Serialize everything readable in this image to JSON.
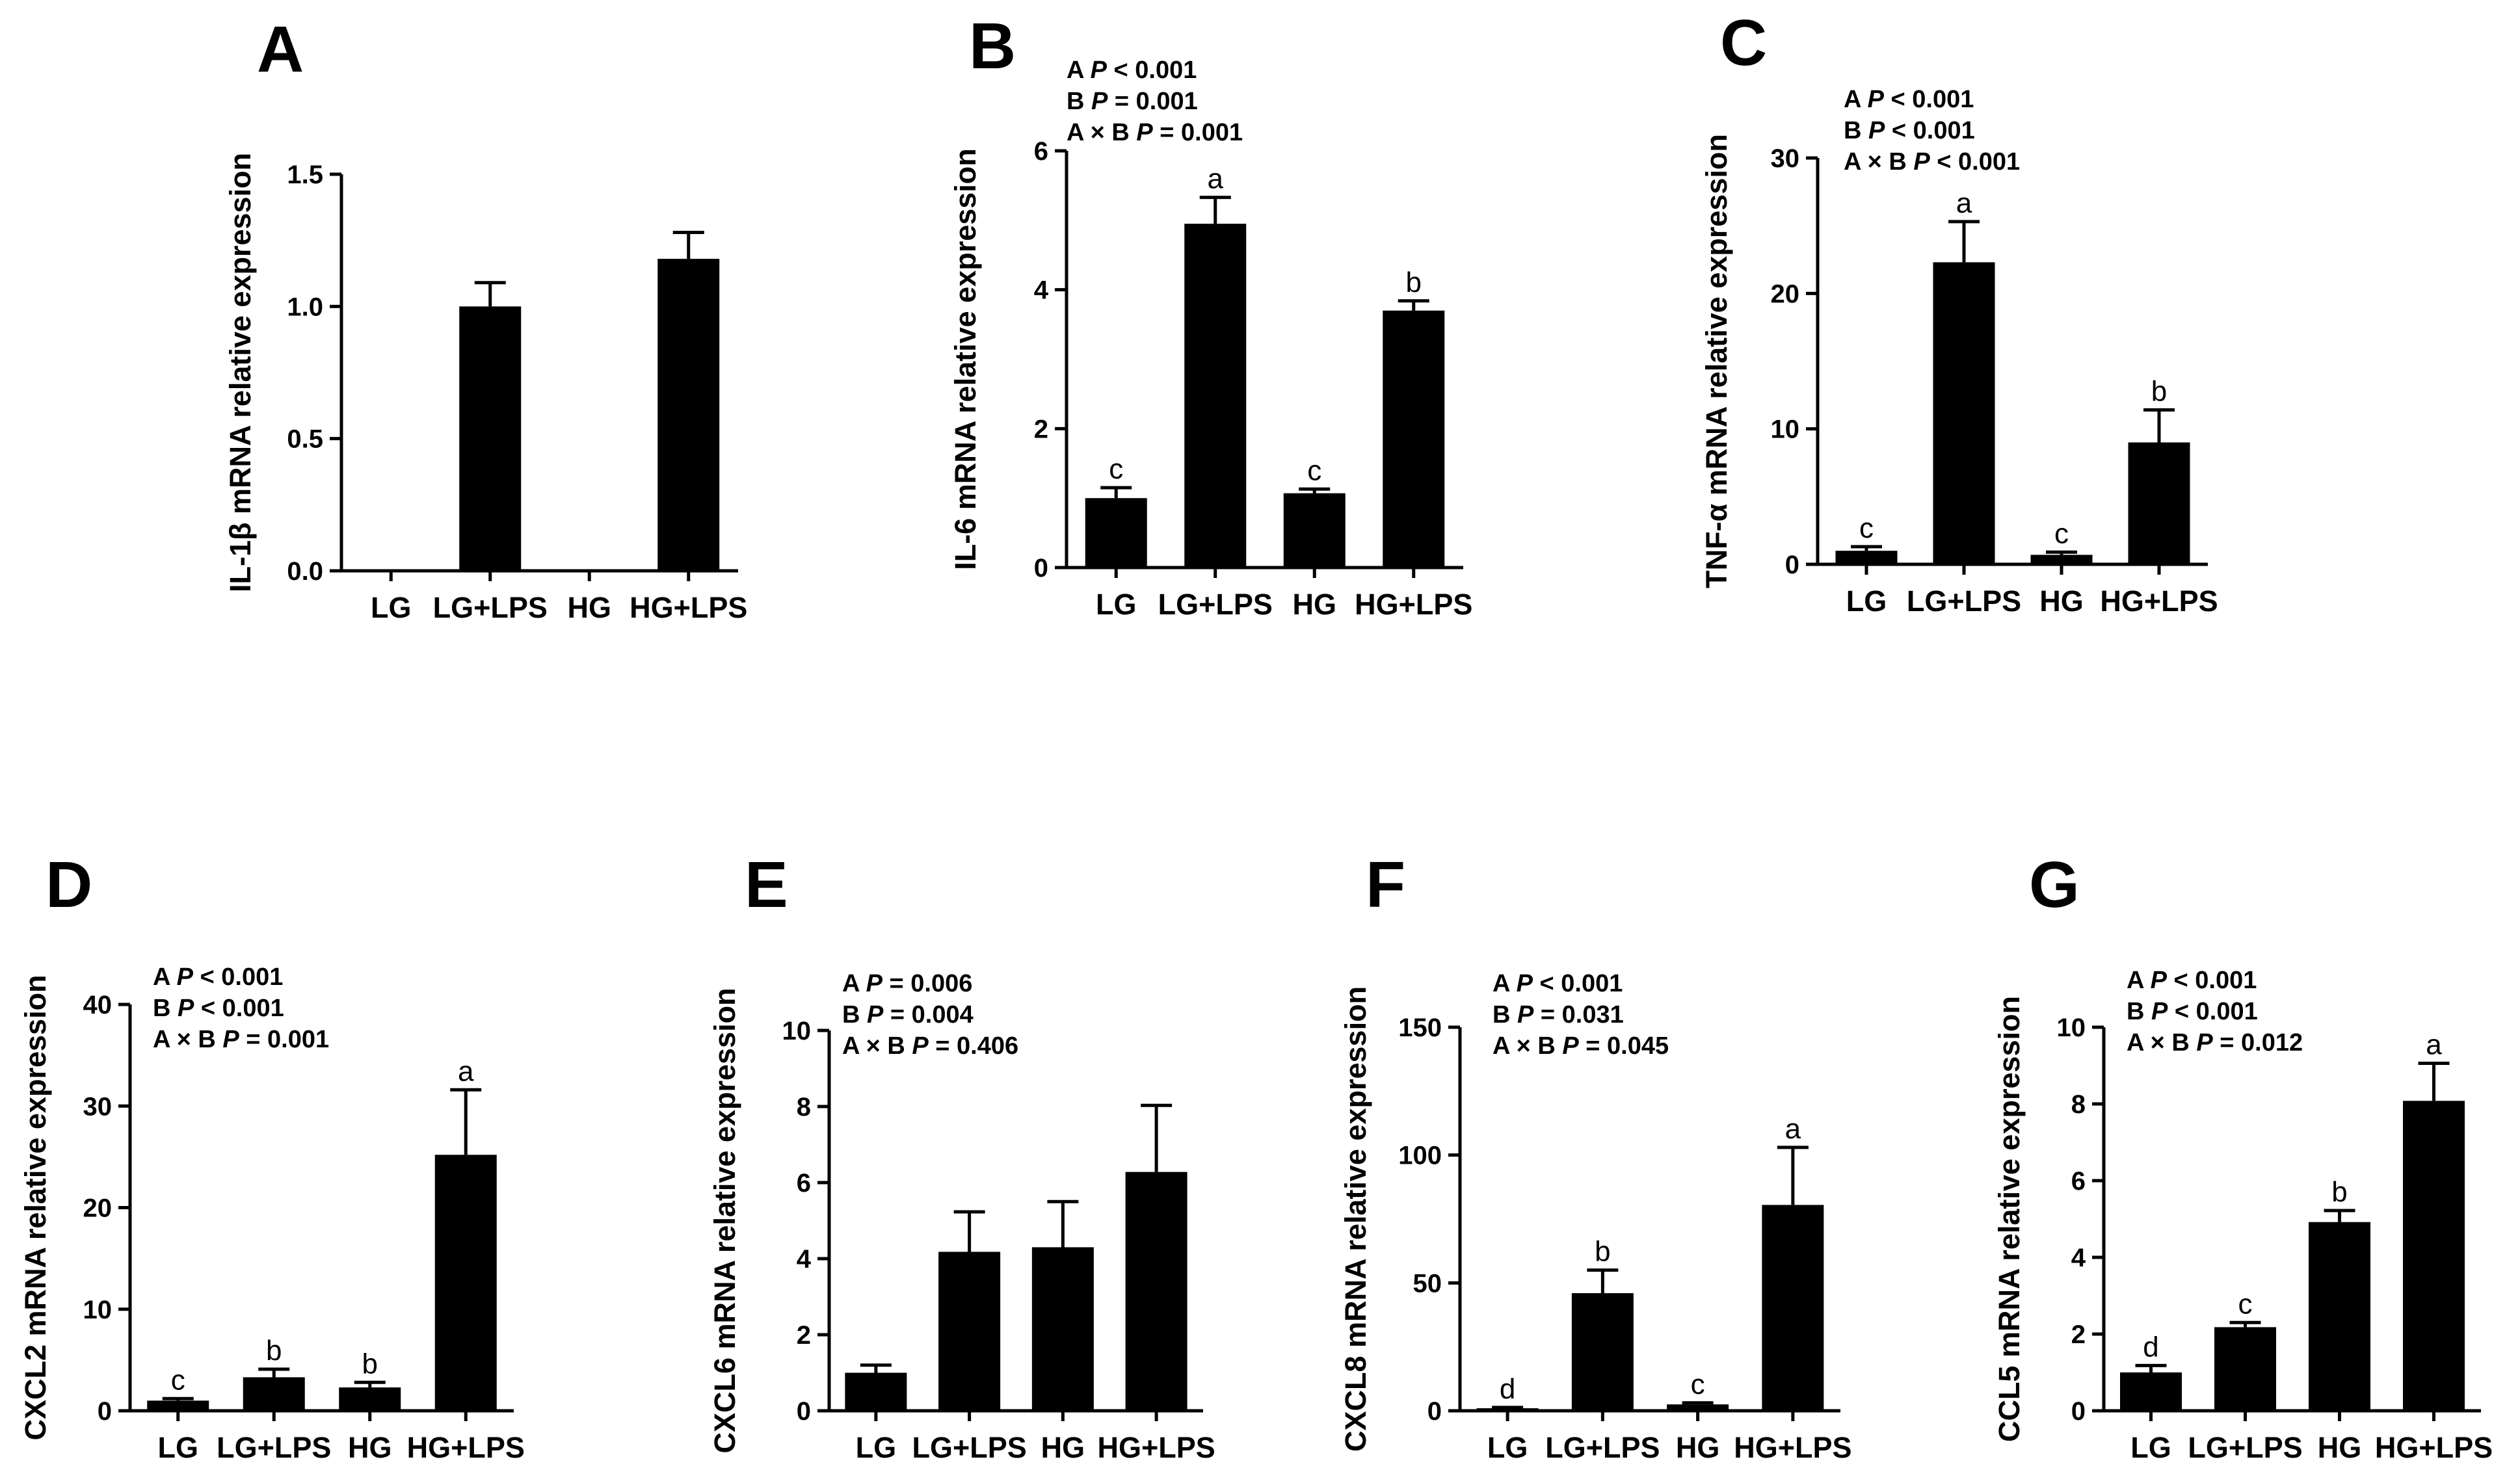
{
  "chart_data": [
    {
      "type": "bar",
      "panel": "A",
      "ylabel": "IL-1β mRNA relative expression",
      "categories": [
        "LG",
        "LG+LPS",
        "HG",
        "HG+LPS"
      ],
      "values": [
        0,
        1.0,
        0,
        1.18
      ],
      "errors": [
        0,
        0.09,
        0,
        0.1
      ],
      "ylim": [
        0,
        1.5
      ],
      "yticks": [
        "0.0",
        "0.5",
        "1.0",
        "1.5"
      ],
      "letters": [
        "",
        "",
        "",
        ""
      ],
      "stats": []
    },
    {
      "type": "bar",
      "panel": "B",
      "ylabel": "IL-6 mRNA relative expression",
      "categories": [
        "LG",
        "LG+LPS",
        "HG",
        "HG+LPS"
      ],
      "values": [
        1.0,
        4.95,
        1.07,
        3.7
      ],
      "errors": [
        0.15,
        0.38,
        0.06,
        0.14
      ],
      "ylim": [
        0,
        6
      ],
      "yticks": [
        "0",
        "2",
        "4",
        "6"
      ],
      "letters": [
        "c",
        "a",
        "c",
        "b"
      ],
      "stats": [
        [
          {
            "t": "A "
          },
          {
            "t": "P",
            "i": true
          },
          {
            "t": " < 0.001"
          }
        ],
        [
          {
            "t": "B "
          },
          {
            "t": "P",
            "i": true
          },
          {
            "t": " = 0.001"
          }
        ],
        [
          {
            "t": "A × B "
          },
          {
            "t": "P",
            "i": true
          },
          {
            "t": " = 0.001"
          }
        ]
      ]
    },
    {
      "type": "bar",
      "panel": "C",
      "ylabel": "TNF-α mRNA relative expression",
      "categories": [
        "LG",
        "LG+LPS",
        "HG",
        "HG+LPS"
      ],
      "values": [
        1.0,
        22.3,
        0.7,
        9.0
      ],
      "errors": [
        0.3,
        3.0,
        0.2,
        2.4
      ],
      "ylim": [
        0,
        30
      ],
      "yticks": [
        "0",
        "10",
        "20",
        "30"
      ],
      "letters": [
        "c",
        "a",
        "c",
        "b"
      ],
      "stats": [
        [
          {
            "t": "A "
          },
          {
            "t": "P",
            "i": true
          },
          {
            "t": " < 0.001"
          }
        ],
        [
          {
            "t": "B "
          },
          {
            "t": "P",
            "i": true
          },
          {
            "t": " < 0.001"
          }
        ],
        [
          {
            "t": "A × B "
          },
          {
            "t": "P",
            "i": true
          },
          {
            "t": " < 0.001"
          }
        ]
      ]
    },
    {
      "type": "bar",
      "panel": "D",
      "ylabel": "CXCL2 mRNA relative expression",
      "categories": [
        "LG",
        "LG+LPS",
        "HG",
        "HG+LPS"
      ],
      "values": [
        1.0,
        3.3,
        2.3,
        25.2
      ],
      "errors": [
        0.2,
        0.8,
        0.5,
        6.4
      ],
      "ylim": [
        0,
        40
      ],
      "yticks": [
        "0",
        "10",
        "20",
        "30",
        "40"
      ],
      "letters": [
        "c",
        "b",
        "b",
        "a"
      ],
      "stats": [
        [
          {
            "t": "A "
          },
          {
            "t": "P",
            "i": true
          },
          {
            "t": " < 0.001"
          }
        ],
        [
          {
            "t": "B "
          },
          {
            "t": "P",
            "i": true
          },
          {
            "t": " < 0.001"
          }
        ],
        [
          {
            "t": "A × B "
          },
          {
            "t": "P",
            "i": true
          },
          {
            "t": " = 0.001"
          }
        ]
      ]
    },
    {
      "type": "bar",
      "panel": "E",
      "ylabel": "CXCL6 mRNA relative expression",
      "categories": [
        "LG",
        "LG+LPS",
        "HG",
        "HG+LPS"
      ],
      "values": [
        1.0,
        4.18,
        4.3,
        6.28
      ],
      "errors": [
        0.2,
        1.05,
        1.2,
        1.75
      ],
      "ylim": [
        0,
        10
      ],
      "yticks": [
        "0",
        "2",
        "4",
        "6",
        "8",
        "10"
      ],
      "letters": [
        "",
        "",
        "",
        ""
      ],
      "stats": [
        [
          {
            "t": "A "
          },
          {
            "t": "P",
            "i": true
          },
          {
            "t": " = 0.006"
          }
        ],
        [
          {
            "t": "B "
          },
          {
            "t": "P",
            "i": true
          },
          {
            "t": " = 0.004"
          }
        ],
        [
          {
            "t": "A × B "
          },
          {
            "t": "P",
            "i": true
          },
          {
            "t": " = 0.406"
          }
        ]
      ]
    },
    {
      "type": "bar",
      "panel": "F",
      "ylabel": "CXCL8 mRNA relative expression",
      "categories": [
        "LG",
        "LG+LPS",
        "HG",
        "HG+LPS"
      ],
      "values": [
        1.0,
        46.0,
        2.5,
        80.5
      ],
      "errors": [
        0.3,
        9.0,
        0.6,
        22.5
      ],
      "ylim": [
        0,
        150
      ],
      "yticks": [
        "0",
        "50",
        "100",
        "150"
      ],
      "letters": [
        "d",
        "b",
        "c",
        "a"
      ],
      "stats": [
        [
          {
            "t": "A "
          },
          {
            "t": "P",
            "i": true
          },
          {
            "t": " < 0.001"
          }
        ],
        [
          {
            "t": "B "
          },
          {
            "t": "P",
            "i": true
          },
          {
            "t": " = 0.031"
          }
        ],
        [
          {
            "t": "A × B "
          },
          {
            "t": "P",
            "i": true
          },
          {
            "t": " = 0.045"
          }
        ]
      ]
    },
    {
      "type": "bar",
      "panel": "G",
      "ylabel": "CCL5 mRNA relative expression",
      "categories": [
        "LG",
        "LG+LPS",
        "HG",
        "HG+LPS"
      ],
      "values": [
        1.0,
        2.18,
        4.92,
        8.08
      ],
      "errors": [
        0.18,
        0.12,
        0.3,
        0.98
      ],
      "ylim": [
        0,
        10
      ],
      "yticks": [
        "0",
        "2",
        "4",
        "6",
        "8",
        "10"
      ],
      "letters": [
        "d",
        "c",
        "b",
        "a"
      ],
      "stats": [
        [
          {
            "t": "A "
          },
          {
            "t": "P",
            "i": true
          },
          {
            "t": " < 0.001"
          }
        ],
        [
          {
            "t": "B "
          },
          {
            "t": "P",
            "i": true
          },
          {
            "t": " < 0.001"
          }
        ],
        [
          {
            "t": "A × B "
          },
          {
            "t": "P",
            "i": true
          },
          {
            "t": " = 0.012"
          }
        ]
      ]
    }
  ]
}
